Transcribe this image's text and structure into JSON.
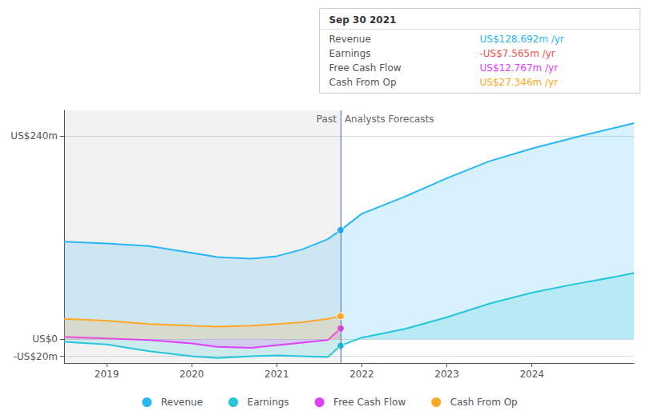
{
  "chart_data": {
    "type": "line",
    "x": [
      2018.5,
      2019.0,
      2019.5,
      2020.0,
      2020.3,
      2020.7,
      2021.0,
      2021.3,
      2021.6,
      2021.75,
      2022.0,
      2022.5,
      2023.0,
      2023.5,
      2024.0,
      2024.5,
      2025.0,
      2025.2
    ],
    "series": [
      {
        "name": "Revenue",
        "color": "#29b6f6",
        "values": [
          115,
          113,
          110,
          102,
          97,
          95,
          98,
          106,
          118,
          128.7,
          148,
          168,
          190,
          210,
          225,
          238,
          250,
          255
        ]
      },
      {
        "name": "Earnings",
        "color": "#26c6da",
        "values": [
          -3,
          -6,
          -14,
          -20,
          -22,
          -20,
          -19,
          -20,
          -21,
          -7.6,
          2,
          12,
          26,
          42,
          55,
          65,
          74,
          78
        ]
      },
      {
        "name": "Free Cash Flow",
        "color": "#e040fb",
        "values": [
          3,
          1,
          -1,
          -5,
          -9,
          -10,
          -7,
          -4,
          -1,
          12.8,
          null,
          null,
          null,
          null,
          null,
          null,
          null,
          null
        ]
      },
      {
        "name": "Cash From Op",
        "color": "#ffa726",
        "values": [
          24,
          22,
          18,
          16,
          15,
          16,
          18,
          20,
          24,
          27.3,
          null,
          null,
          null,
          null,
          null,
          null,
          null,
          null
        ]
      }
    ],
    "xlim": [
      2018.5,
      2025.2
    ],
    "xticks": [
      2019,
      2020,
      2021,
      2022,
      2023,
      2024
    ],
    "ylim": [
      -28,
      270
    ],
    "yticks": [
      {
        "value": 240,
        "label": "US$240m"
      },
      {
        "value": 0,
        "label": "US$0"
      },
      {
        "value": -20,
        "label": "-US$20m"
      }
    ],
    "grid": true,
    "legend": "bottom",
    "divider_x": 2021.75,
    "annotations": [
      "Past",
      "Analysts Forecasts"
    ],
    "info_box": {
      "title": "Sep 30 2021",
      "rows": [
        {
          "label": "Revenue",
          "value": "US$128.692m /yr",
          "color": "#29b6f6"
        },
        {
          "label": "Earnings",
          "value": "-US$7.565m /yr",
          "color": "#ef5350"
        },
        {
          "label": "Free Cash Flow",
          "value": "US$12.767m /yr",
          "color": "#e040fb"
        },
        {
          "label": "Cash From Op",
          "value": "US$27.346m /yr",
          "color": "#ffa726"
        }
      ]
    }
  }
}
